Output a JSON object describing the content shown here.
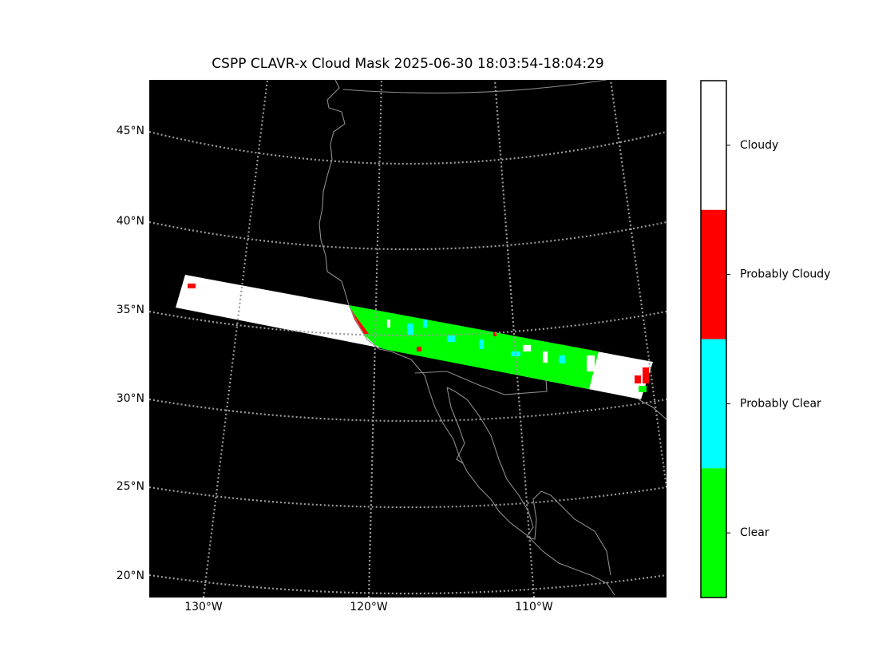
{
  "title": "CSPP CLAVR-x Cloud Mask 2025-06-30 18:03:54-18:04:29",
  "lat_labels": [
    "45°N",
    "40°N",
    "35°N",
    "30°N",
    "25°N",
    "20°N"
  ],
  "lon_labels": [
    "130°W",
    "120°W",
    "110°W"
  ],
  "colorbar": {
    "categories": [
      {
        "label": "Cloudy",
        "color": "#ffffff"
      },
      {
        "label": "Probably Cloudy",
        "color": "#ff0000"
      },
      {
        "label": "Probably Clear",
        "color": "#00ffff"
      },
      {
        "label": "Clear",
        "color": "#00ff00"
      }
    ]
  }
}
